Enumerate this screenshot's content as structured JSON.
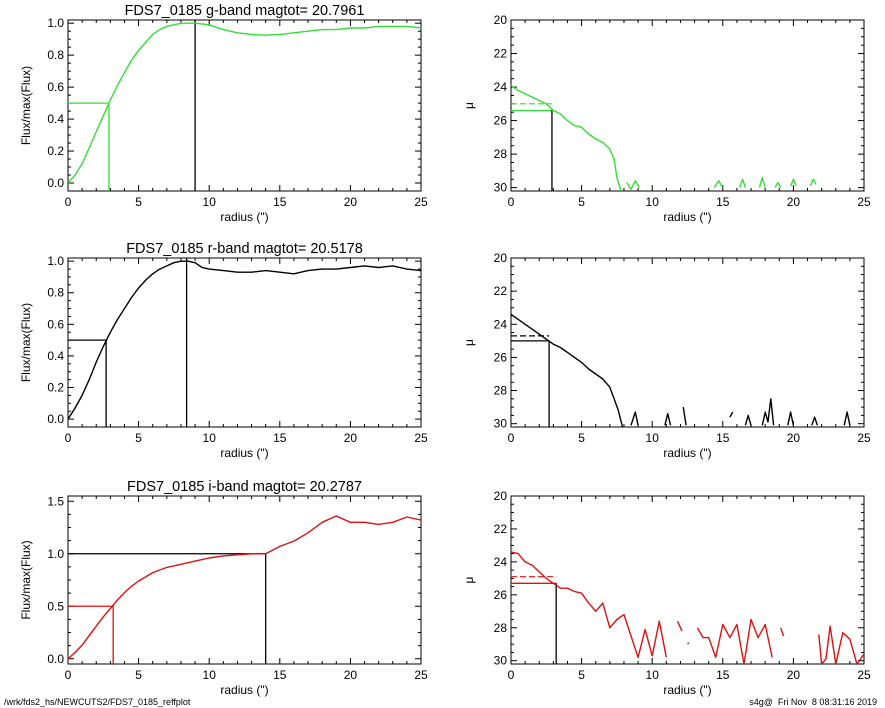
{
  "footer": {
    "left": "/wrk/fds2_hs/NEWCUTS2/FDS7_0185_reffplot",
    "right": "s4g@  Fri Nov  8 08:31:16 2019"
  },
  "chart_data": [
    {
      "type": "line",
      "title": "FDS7_0185 g-band  magtot=     20.7961",
      "xlabel": "radius (\")",
      "ylabel": "Flux/max(Flux)",
      "xlim": [
        0,
        25
      ],
      "ylim": [
        -0.05,
        1.02
      ],
      "xticks": [
        0,
        5,
        10,
        15,
        20,
        25
      ],
      "yticks": [
        0.0,
        0.2,
        0.4,
        0.6,
        0.8,
        1.0
      ],
      "ytick_labels": [
        "0.0",
        "0.2",
        "0.4",
        "0.6",
        "0.8",
        "1.0"
      ],
      "color": "#33dd33",
      "ref_color": "#000000",
      "half_radius": 2.9,
      "half_level": 0.5,
      "total_radius": 9.0,
      "total_level": 1.0,
      "series": [
        {
          "x": [
            0,
            0.5,
            1,
            1.5,
            2,
            2.5,
            3,
            3.5,
            4,
            4.5,
            5,
            5.5,
            6,
            6.5,
            7,
            7.5,
            8,
            8.5,
            9,
            10,
            11,
            12,
            13,
            14,
            15,
            16,
            17,
            18,
            19,
            20,
            21,
            22,
            23,
            24,
            25
          ],
          "y": [
            0.0,
            0.05,
            0.12,
            0.22,
            0.32,
            0.42,
            0.52,
            0.61,
            0.69,
            0.77,
            0.83,
            0.88,
            0.93,
            0.96,
            0.98,
            0.99,
            1.0,
            1.0,
            1.0,
            0.99,
            0.96,
            0.94,
            0.93,
            0.925,
            0.93,
            0.94,
            0.95,
            0.96,
            0.96,
            0.97,
            0.97,
            0.98,
            0.98,
            0.98,
            0.97
          ]
        }
      ]
    },
    {
      "type": "line",
      "xlabel": "radius (\")",
      "ylabel": "μ",
      "xlim": [
        0,
        25
      ],
      "ylim": [
        30.2,
        20
      ],
      "xticks": [
        0,
        5,
        10,
        15,
        20,
        25
      ],
      "yticks": [
        20,
        22,
        24,
        26,
        28,
        30
      ],
      "ytick_labels": [
        "20",
        "22",
        "24",
        "26",
        "28",
        "30"
      ],
      "color": "#33dd33",
      "ref_color": "#000000",
      "half_radius": 2.9,
      "mu_half": 25.4,
      "mu_dashed": 25.0,
      "series": [
        {
          "x": [
            0,
            0.5,
            1,
            1.5,
            2,
            2.5,
            3,
            3.5,
            4,
            4.5,
            5,
            5.5,
            6,
            6.5,
            7,
            7.3,
            7.5,
            7.8
          ],
          "y": [
            23.9,
            24.2,
            24.4,
            24.6,
            24.8,
            25.0,
            25.4,
            25.6,
            26.0,
            26.3,
            26.4,
            26.8,
            27.1,
            27.3,
            27.7,
            28.3,
            29.4,
            30.2
          ]
        },
        {
          "x": [
            8.2,
            8.5,
            8.8,
            9.1
          ],
          "y": [
            29.7,
            30.1,
            29.6,
            30.0
          ]
        },
        {
          "x": [
            14.4,
            14.7,
            15.0
          ],
          "y": [
            30.0,
            29.6,
            30.0
          ]
        },
        {
          "x": [
            16.2,
            16.4,
            16.6
          ],
          "y": [
            30.0,
            29.5,
            30.0
          ]
        },
        {
          "x": [
            17.6,
            17.8,
            18.0
          ],
          "y": [
            30.0,
            29.4,
            30.0
          ]
        },
        {
          "x": [
            18.7,
            18.9,
            19.1
          ],
          "y": [
            30.0,
            29.7,
            30.0
          ]
        },
        {
          "x": [
            19.8,
            20.0,
            20.2
          ],
          "y": [
            29.9,
            29.5,
            29.9
          ]
        },
        {
          "x": [
            21.2,
            21.4,
            21.6
          ],
          "y": [
            29.9,
            29.5,
            29.8
          ]
        }
      ]
    },
    {
      "type": "line",
      "title": "FDS7_0185 r-band  magtot=     20.5178",
      "xlabel": "radius (\")",
      "ylabel": "Flux/max(Flux)",
      "xlim": [
        0,
        25
      ],
      "ylim": [
        -0.05,
        1.02
      ],
      "xticks": [
        0,
        5,
        10,
        15,
        20,
        25
      ],
      "yticks": [
        0.0,
        0.2,
        0.4,
        0.6,
        0.8,
        1.0
      ],
      "ytick_labels": [
        "0.0",
        "0.2",
        "0.4",
        "0.6",
        "0.8",
        "1.0"
      ],
      "color": "#000000",
      "ref_color": "#000000",
      "half_radius": 2.7,
      "half_level": 0.5,
      "total_radius": 8.4,
      "total_level": 1.0,
      "series": [
        {
          "x": [
            0,
            0.5,
            1,
            1.5,
            2,
            2.5,
            3,
            3.5,
            4,
            4.5,
            5,
            5.5,
            6,
            6.5,
            7,
            7.5,
            8,
            8.5,
            9,
            9.5,
            10,
            11,
            12,
            13,
            14,
            15,
            16,
            17,
            18,
            19,
            20,
            21,
            22,
            23,
            24,
            25
          ],
          "y": [
            0.0,
            0.07,
            0.15,
            0.25,
            0.36,
            0.46,
            0.55,
            0.63,
            0.7,
            0.77,
            0.83,
            0.88,
            0.92,
            0.95,
            0.97,
            0.99,
            1.0,
            1.0,
            0.99,
            0.96,
            0.95,
            0.94,
            0.93,
            0.93,
            0.94,
            0.93,
            0.92,
            0.94,
            0.95,
            0.95,
            0.96,
            0.97,
            0.96,
            0.97,
            0.95,
            0.94
          ]
        }
      ]
    },
    {
      "type": "line",
      "xlabel": "radius (\")",
      "ylabel": "μ",
      "xlim": [
        0,
        25
      ],
      "ylim": [
        30.2,
        20
      ],
      "xticks": [
        0,
        5,
        10,
        15,
        20,
        25
      ],
      "yticks": [
        20,
        22,
        24,
        26,
        28,
        30
      ],
      "ytick_labels": [
        "20",
        "22",
        "24",
        "26",
        "28",
        "30"
      ],
      "color": "#000000",
      "ref_color": "#000000",
      "half_radius": 2.7,
      "mu_half": 25.0,
      "mu_dashed": 24.7,
      "series": [
        {
          "x": [
            0,
            0.5,
            1,
            1.5,
            2,
            2.5,
            3,
            3.5,
            4,
            4.5,
            5,
            5.5,
            6,
            6.5,
            7,
            7.3,
            7.6,
            7.9
          ],
          "y": [
            23.4,
            23.7,
            24.0,
            24.3,
            24.6,
            24.9,
            25.2,
            25.4,
            25.7,
            26.0,
            26.3,
            26.7,
            27.0,
            27.3,
            27.8,
            28.5,
            29.2,
            30.2
          ]
        },
        {
          "x": [
            8.5,
            8.8,
            9.0
          ],
          "y": [
            30.1,
            29.3,
            30.1
          ]
        },
        {
          "x": [
            10.9,
            11.1,
            11.3
          ],
          "y": [
            30.1,
            29.4,
            30.1
          ]
        },
        {
          "x": [
            12.2,
            12.4
          ],
          "y": [
            29.0,
            30.1
          ]
        },
        {
          "x": [
            15.5,
            15.7
          ],
          "y": [
            29.6,
            29.3
          ]
        },
        {
          "x": [
            16.6,
            16.8,
            17.0
          ],
          "y": [
            30.1,
            29.5,
            30.1
          ]
        },
        {
          "x": [
            17.8,
            18.0,
            18.2,
            18.4,
            18.6
          ],
          "y": [
            30.1,
            29.3,
            29.9,
            28.5,
            30.1
          ]
        },
        {
          "x": [
            19.6,
            19.8,
            20.0
          ],
          "y": [
            30.1,
            29.3,
            30.1
          ]
        },
        {
          "x": [
            21.3,
            21.5,
            21.7
          ],
          "y": [
            30.1,
            29.6,
            30.1
          ]
        },
        {
          "x": [
            23.6,
            23.8,
            24.0
          ],
          "y": [
            30.1,
            29.3,
            30.1
          ]
        }
      ]
    },
    {
      "type": "line",
      "title": "FDS7_0185 i-band  magtot=     20.2787",
      "xlabel": "radius (\")",
      "ylabel": "Flux/max(Flux)",
      "xlim": [
        0,
        25
      ],
      "ylim": [
        -0.05,
        1.55
      ],
      "xticks": [
        0,
        5,
        10,
        15,
        20,
        25
      ],
      "yticks": [
        0.0,
        0.5,
        1.0,
        1.5
      ],
      "ytick_labels": [
        "0.0",
        "0.5",
        "1.0",
        "1.5"
      ],
      "color": "#dd1111",
      "ref_color": "#000000",
      "half_radius": 3.2,
      "half_level": 0.5,
      "total_radius": 14.0,
      "total_level": 1.0,
      "series": [
        {
          "x": [
            0,
            0.5,
            1,
            1.5,
            2,
            2.5,
            3,
            3.5,
            4,
            4.5,
            5,
            5.5,
            6,
            7,
            8,
            9,
            10,
            11,
            12,
            13,
            14,
            15,
            16,
            17,
            18,
            19,
            20,
            21,
            22,
            23,
            24,
            25
          ],
          "y": [
            0.0,
            0.06,
            0.13,
            0.22,
            0.31,
            0.4,
            0.48,
            0.56,
            0.63,
            0.69,
            0.74,
            0.78,
            0.82,
            0.87,
            0.9,
            0.93,
            0.96,
            0.98,
            0.99,
            1.0,
            1.0,
            1.07,
            1.12,
            1.2,
            1.3,
            1.36,
            1.3,
            1.3,
            1.28,
            1.3,
            1.35,
            1.32
          ]
        }
      ]
    },
    {
      "type": "line",
      "xlabel": "radius (\")",
      "ylabel": "μ",
      "xlim": [
        0,
        25
      ],
      "ylim": [
        30.2,
        20
      ],
      "xticks": [
        0,
        5,
        10,
        15,
        20,
        25
      ],
      "yticks": [
        20,
        22,
        24,
        26,
        28,
        30
      ],
      "ytick_labels": [
        "20",
        "22",
        "24",
        "26",
        "28",
        "30"
      ],
      "color": "#dd1111",
      "ref_color": "#000000",
      "half_radius": 3.2,
      "mu_half": 25.3,
      "mu_dashed": 24.9,
      "series": [
        {
          "x": [
            0,
            0.5,
            1,
            1.5,
            2,
            2.5,
            3,
            3.5,
            4,
            4.5,
            5,
            5.5,
            6,
            6.5,
            7,
            7.5,
            8,
            8.5,
            9,
            9.5,
            10,
            10.5,
            11
          ],
          "y": [
            23.4,
            23.5,
            24.0,
            24.2,
            24.6,
            25.0,
            25.3,
            25.6,
            25.6,
            25.8,
            25.9,
            26.5,
            27.0,
            26.5,
            28.0,
            27.5,
            27.2,
            28.5,
            29.8,
            28.1,
            29.7,
            27.6,
            29.8
          ]
        },
        {
          "x": [
            11.8,
            12.1
          ],
          "y": [
            27.6,
            28.2
          ]
        },
        {
          "x": [
            12.5,
            12.6
          ],
          "y": [
            29.0,
            28.9
          ]
        },
        {
          "x": [
            13.2,
            13.6,
            14.0,
            14.5,
            15.0,
            15.5,
            16.0,
            16.5,
            17.0,
            17.5,
            18.0,
            18.5
          ],
          "y": [
            28.0,
            28.6,
            28.6,
            29.8,
            27.8,
            28.6,
            27.8,
            30.2,
            27.5,
            28.6,
            27.8,
            29.8
          ]
        },
        {
          "x": [
            19.1,
            19.3
          ],
          "y": [
            28.0,
            28.5
          ]
        },
        {
          "x": [
            21.8,
            22.0,
            22.3,
            22.6,
            23.0,
            23.5,
            24.0,
            24.5,
            25.0
          ],
          "y": [
            28.4,
            30.2,
            29.9,
            27.9,
            30.2,
            28.3,
            28.7,
            30.2,
            29.6
          ]
        }
      ]
    }
  ]
}
